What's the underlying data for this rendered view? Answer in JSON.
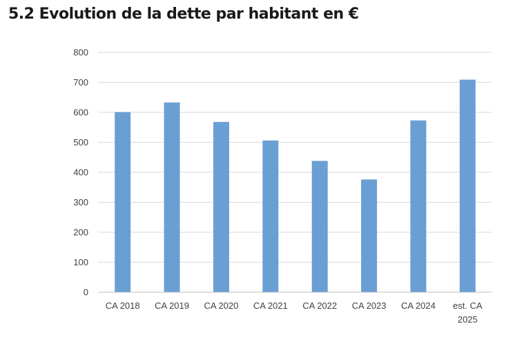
{
  "page": {
    "heading": "5.2 Evolution de la dette par habitant en €"
  },
  "chart_data": {
    "type": "bar",
    "title": "",
    "xlabel": "",
    "ylabel": "",
    "categories": [
      [
        "CA 2018"
      ],
      [
        "CA 2019"
      ],
      [
        "CA 2020"
      ],
      [
        "CA 2021"
      ],
      [
        "CA 2022"
      ],
      [
        "CA 2023"
      ],
      [
        "CA 2024"
      ],
      [
        "est. CA",
        "2025"
      ]
    ],
    "values": [
      601,
      633,
      568,
      506,
      438,
      376,
      573,
      709
    ],
    "ylim": [
      0,
      800
    ],
    "yticks": [
      0,
      100,
      200,
      300,
      400,
      500,
      600,
      700,
      800
    ],
    "grid": true,
    "legend": "none",
    "colors": {
      "bar": "#6a9fd3",
      "grid": "#d9d9d9",
      "axis": "#bfbfbf"
    }
  }
}
